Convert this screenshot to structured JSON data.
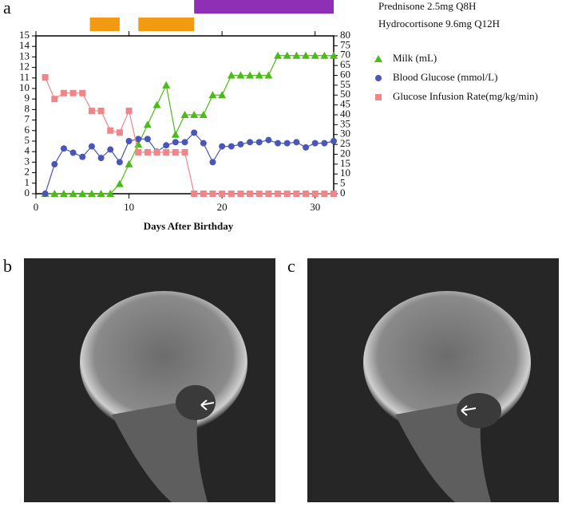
{
  "panels": [
    "a",
    "b",
    "c"
  ],
  "chart_data": {
    "type": "line",
    "xlabel": "Days After Birthday",
    "xlim": [
      0,
      32
    ],
    "xticks": [
      0,
      10,
      20,
      30
    ],
    "ylim": [
      0,
      15
    ],
    "yticks": [
      0,
      1,
      2,
      3,
      4,
      5,
      6,
      7,
      8,
      9,
      10,
      11,
      12,
      13,
      14,
      15
    ],
    "y2lim": [
      0,
      80
    ],
    "y2ticks": [
      0,
      5,
      10,
      15,
      20,
      25,
      30,
      35,
      40,
      45,
      50,
      55,
      60,
      65,
      70,
      75,
      80
    ],
    "x": [
      1,
      2,
      3,
      4,
      5,
      6,
      7,
      8,
      9,
      10,
      11,
      12,
      13,
      14,
      15,
      16,
      17,
      18,
      19,
      20,
      21,
      22,
      23,
      24,
      25,
      26,
      27,
      28,
      29,
      30,
      31,
      32
    ],
    "series": [
      {
        "name": "Milk (mL)",
        "color": "#4cbb17",
        "marker": "triangle",
        "axis": "y2",
        "values": [
          0,
          0,
          0,
          0,
          0,
          0,
          0,
          0,
          5,
          15,
          25,
          35,
          45,
          55,
          30,
          40,
          40,
          40,
          50,
          50,
          60,
          60,
          60,
          60,
          60,
          70,
          70,
          70,
          70,
          70,
          70,
          70
        ]
      },
      {
        "name": "Blood Glucose (mmol/L)",
        "color": "#4a55b8",
        "marker": "circle",
        "values": [
          0,
          2.8,
          4.3,
          3.9,
          3.5,
          4.5,
          3.4,
          4.2,
          3.0,
          5.0,
          5.2,
          5.2,
          4.0,
          4.6,
          4.9,
          4.9,
          5.8,
          4.8,
          3.0,
          4.5,
          4.5,
          4.7,
          4.9,
          4.9,
          5.1,
          4.8,
          4.8,
          4.9,
          4.4,
          4.8,
          4.8,
          5.0
        ]
      },
      {
        "name": "Glucose Infusion Rate(mg/kg/min)",
        "color": "#f0868a",
        "marker": "square",
        "axis": "y2",
        "values": [
          59,
          48,
          51,
          51,
          51,
          42,
          42,
          32,
          31,
          42,
          21,
          21,
          21,
          21,
          21,
          21,
          0,
          0,
          0,
          0,
          0,
          0,
          0,
          0,
          0,
          0,
          0,
          0,
          0,
          0,
          0,
          0
        ]
      }
    ],
    "treatments": [
      {
        "label": "Prednisone 2.5mg Q8H",
        "color": "#8e2fb5",
        "spans": [
          [
            17,
            32
          ]
        ]
      },
      {
        "label": "Hydrocortisone 9.6mg Q12H",
        "color": "#f39a12",
        "spans": [
          [
            5.8,
            9
          ],
          [
            11,
            17
          ]
        ]
      }
    ]
  }
}
